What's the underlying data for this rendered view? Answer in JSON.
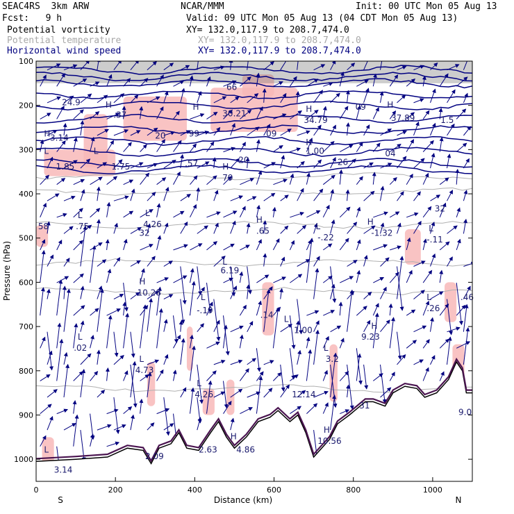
{
  "header": {
    "model": "SEAC4RS  3km ARW",
    "org": "NCAR/MMM",
    "init": "Init: 00 UTC Mon 05 Aug 13",
    "fcst": "Fcst:   9 h",
    "valid": "Valid: 09 UTC Mon 05 Aug 13 (04 CDT Mon 05 Aug 13)",
    "fields": [
      {
        "name": "Potential vorticity",
        "xy": "XY= 132.0,117.9 to 208.7,474.0",
        "color": "#000000"
      },
      {
        "name": "Potential temperature",
        "xy": "XY= 132.0,117.9 to 208.7,474.0",
        "color": "#a8a8a8"
      },
      {
        "name": "Horizontal wind speed",
        "xy": "XY= 132.0,117.9 to 208.7,474.0",
        "color": "#000080"
      }
    ]
  },
  "chart_data": {
    "type": "cross-section",
    "xlabel": "Distance (km)",
    "ylabel": "Pressure (hPa)",
    "xlim": [
      0,
      1100
    ],
    "ylim": [
      1050,
      100
    ],
    "x_ticks": [
      0,
      200,
      400,
      600,
      800,
      1000
    ],
    "y_ticks": [
      100,
      200,
      300,
      400,
      500,
      600,
      700,
      800,
      900,
      1000
    ],
    "end_labels": {
      "left": "S",
      "right": "N"
    },
    "colors": {
      "pv_shading": "#f8b8b8",
      "wind_contour": "#000080",
      "theta_contour": "#b0b0b0",
      "terrain": "#000000",
      "pv_contour": "#4a1450",
      "cloud": "#707070"
    },
    "field_labels": [
      {
        "text": "24.9",
        "x": 65,
        "p": 200
      },
      {
        "text": "3.14",
        "x": 35,
        "p": 280
      },
      {
        "text": "1.85",
        "x": 50,
        "p": 345
      },
      {
        "text": "1.75",
        "x": 190,
        "p": 345
      },
      {
        "text": ".37",
        "x": 195,
        "p": 228
      },
      {
        "text": "66",
        "x": 480,
        "p": 165
      },
      {
        "text": "30.21",
        "x": 470,
        "p": 225
      },
      {
        "text": "99",
        "x": 385,
        "p": 270
      },
      {
        "text": "20",
        "x": 300,
        "p": 275
      },
      {
        "text": ".57",
        "x": 375,
        "p": 338
      },
      {
        "text": "79",
        "x": 470,
        "p": 370
      },
      {
        "text": "20",
        "x": 510,
        "p": 330
      },
      {
        "text": "09",
        "x": 580,
        "p": 270
      },
      {
        "text": "34.79",
        "x": 675,
        "p": 240
      },
      {
        "text": "1.00",
        "x": 680,
        "p": 310
      },
      {
        "text": "26",
        "x": 760,
        "p": 335
      },
      {
        "text": "09",
        "x": 805,
        "p": 210
      },
      {
        "text": "37.89",
        "x": 895,
        "p": 235
      },
      {
        "text": "1.5",
        "x": 1020,
        "p": 240
      },
      {
        "text": "04",
        "x": 880,
        "p": 315
      },
      {
        "text": ".75",
        "x": 100,
        "p": 480
      },
      {
        "text": "58",
        "x": 5,
        "p": 480
      },
      {
        "text": "4.26",
        "x": 270,
        "p": 475
      },
      {
        "text": "32",
        "x": 260,
        "p": 495
      },
      {
        "text": ".65",
        "x": 555,
        "p": 490
      },
      {
        "text": "-.22",
        "x": 710,
        "p": 505
      },
      {
        "text": "-1.32",
        "x": 845,
        "p": 495
      },
      {
        "text": "-.11",
        "x": 985,
        "p": 510
      },
      {
        "text": "32",
        "x": 1005,
        "p": 440
      },
      {
        "text": "6.19",
        "x": 465,
        "p": 580
      },
      {
        "text": "10.28",
        "x": 255,
        "p": 630
      },
      {
        "text": ".46",
        "x": 1070,
        "p": 640
      },
      {
        "text": "-.19",
        "x": 405,
        "p": 670
      },
      {
        "text": ".14",
        "x": 565,
        "p": 680
      },
      {
        "text": "1.00",
        "x": 650,
        "p": 715
      },
      {
        "text": ".26",
        "x": 985,
        "p": 665
      },
      {
        "text": "9.23",
        "x": 820,
        "p": 730
      },
      {
        "text": ".02",
        "x": 95,
        "p": 755
      },
      {
        "text": "3.2",
        "x": 730,
        "p": 780
      },
      {
        "text": "4.73",
        "x": 250,
        "p": 805
      },
      {
        "text": "4.26",
        "x": 400,
        "p": 860
      },
      {
        "text": "12.14",
        "x": 645,
        "p": 860
      },
      {
        "text": "31",
        "x": 815,
        "p": 885
      },
      {
        "text": "9.0",
        "x": 1065,
        "p": 900
      },
      {
        "text": "2.63",
        "x": 410,
        "p": 985
      },
      {
        "text": "4.86",
        "x": 505,
        "p": 985
      },
      {
        "text": "10.56",
        "x": 710,
        "p": 965
      },
      {
        "text": "2.09",
        "x": 275,
        "p": 1000
      },
      {
        "text": "3.14",
        "x": 45,
        "p": 1030
      }
    ],
    "extrema_labels": [
      {
        "text": "H",
        "x": 175,
        "p": 205
      },
      {
        "text": "H",
        "x": 395,
        "p": 210
      },
      {
        "text": "H",
        "x": 680,
        "p": 215
      },
      {
        "text": "H",
        "x": 885,
        "p": 205
      },
      {
        "text": "H",
        "x": 20,
        "p": 270
      },
      {
        "text": "L",
        "x": 20,
        "p": 310
      },
      {
        "text": "L",
        "x": 145,
        "p": 310
      },
      {
        "text": "H",
        "x": 470,
        "p": 345
      },
      {
        "text": "H",
        "x": 680,
        "p": 290
      },
      {
        "text": "L",
        "x": 105,
        "p": 455
      },
      {
        "text": "L",
        "x": 275,
        "p": 450
      },
      {
        "text": "H",
        "x": 555,
        "p": 465
      },
      {
        "text": "L",
        "x": 705,
        "p": 480
      },
      {
        "text": "H",
        "x": 835,
        "p": 470
      },
      {
        "text": "L",
        "x": 990,
        "p": 485
      },
      {
        "text": "L",
        "x": 470,
        "p": 560
      },
      {
        "text": "H",
        "x": 260,
        "p": 605
      },
      {
        "text": "L",
        "x": 415,
        "p": 640
      },
      {
        "text": "L",
        "x": 625,
        "p": 690
      },
      {
        "text": "L",
        "x": 985,
        "p": 640
      },
      {
        "text": "H",
        "x": 845,
        "p": 705
      },
      {
        "text": "L",
        "x": 105,
        "p": 730
      },
      {
        "text": "L",
        "x": 725,
        "p": 755
      },
      {
        "text": "L",
        "x": 260,
        "p": 780
      },
      {
        "text": "L",
        "x": 405,
        "p": 835
      },
      {
        "text": "H",
        "x": 490,
        "p": 955
      },
      {
        "text": "H",
        "x": 725,
        "p": 940
      },
      {
        "text": "L",
        "x": 20,
        "p": 985
      }
    ]
  }
}
